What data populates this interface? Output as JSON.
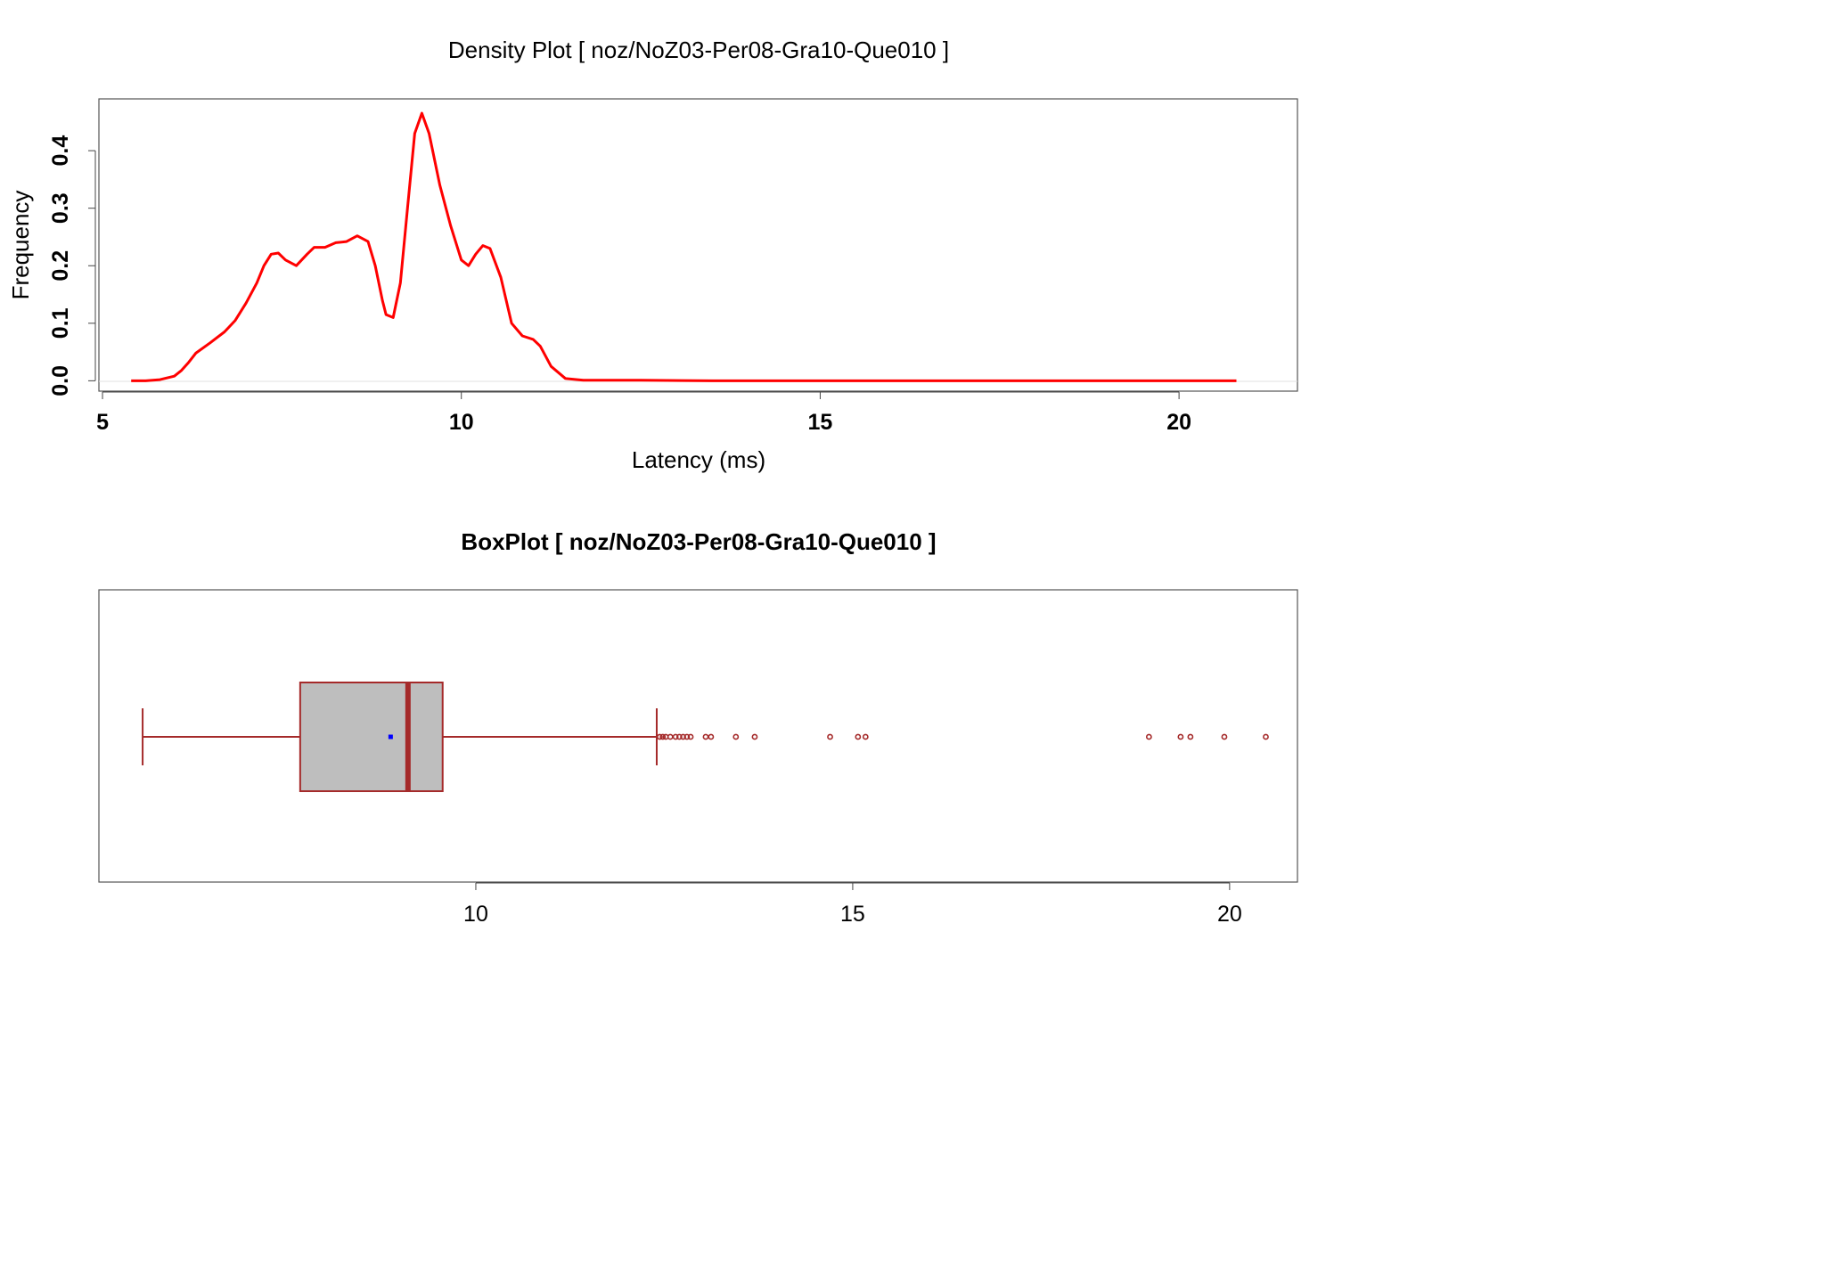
{
  "chart_data": [
    {
      "type": "line",
      "title": "Density Plot [ noz/NoZ03-Per08-Gra10-Que010 ]",
      "xlabel": "Latency (ms)",
      "ylabel": "Frequency",
      "xlim": [
        4.95,
        21.65
      ],
      "ylim": [
        -0.018,
        0.49
      ],
      "x_ticks": [
        "5",
        "10",
        "15",
        "20"
      ],
      "y_ticks": [
        "0.0",
        "0.1",
        "0.2",
        "0.3",
        "0.4"
      ],
      "line_color": "#ff0000",
      "series": [
        {
          "points": [
            [
              5.4,
              0.0
            ],
            [
              5.6,
              0.0
            ],
            [
              5.8,
              0.002
            ],
            [
              6.0,
              0.008
            ],
            [
              6.1,
              0.018
            ],
            [
              6.2,
              0.032
            ],
            [
              6.3,
              0.048
            ],
            [
              6.5,
              0.066
            ],
            [
              6.7,
              0.085
            ],
            [
              6.85,
              0.105
            ],
            [
              7.0,
              0.135
            ],
            [
              7.15,
              0.17
            ],
            [
              7.25,
              0.2
            ],
            [
              7.35,
              0.22
            ],
            [
              7.45,
              0.222
            ],
            [
              7.55,
              0.21
            ],
            [
              7.7,
              0.2
            ],
            [
              7.85,
              0.22
            ],
            [
              7.95,
              0.232
            ],
            [
              8.1,
              0.232
            ],
            [
              8.25,
              0.24
            ],
            [
              8.4,
              0.242
            ],
            [
              8.55,
              0.252
            ],
            [
              8.7,
              0.242
            ],
            [
              8.8,
              0.2
            ],
            [
              8.9,
              0.14
            ],
            [
              8.95,
              0.115
            ],
            [
              9.05,
              0.11
            ],
            [
              9.15,
              0.17
            ],
            [
              9.25,
              0.3
            ],
            [
              9.35,
              0.43
            ],
            [
              9.45,
              0.465
            ],
            [
              9.55,
              0.43
            ],
            [
              9.7,
              0.34
            ],
            [
              9.85,
              0.27
            ],
            [
              10.0,
              0.21
            ],
            [
              10.1,
              0.2
            ],
            [
              10.2,
              0.22
            ],
            [
              10.3,
              0.235
            ],
            [
              10.4,
              0.23
            ],
            [
              10.55,
              0.18
            ],
            [
              10.7,
              0.1
            ],
            [
              10.85,
              0.078
            ],
            [
              11.0,
              0.072
            ],
            [
              11.1,
              0.06
            ],
            [
              11.25,
              0.025
            ],
            [
              11.45,
              0.004
            ],
            [
              11.7,
              0.001
            ],
            [
              12.5,
              0.001
            ],
            [
              13.5,
              0.0
            ],
            [
              15.0,
              0.0
            ],
            [
              17.0,
              0.0
            ],
            [
              19.0,
              0.0
            ],
            [
              20.8,
              0.0
            ]
          ]
        }
      ]
    },
    {
      "type": "box",
      "title": "BoxPlot [ noz/NoZ03-Per08-Gra10-Que010 ]",
      "xlim": [
        5.0,
        20.9
      ],
      "x_ticks": [
        "10",
        "15",
        "20"
      ],
      "whisker_low": 5.58,
      "q1": 7.67,
      "median": 9.1,
      "q3": 9.56,
      "whisker_high": 12.4,
      "mean": 8.87,
      "box_color": "#bebebe",
      "line_color": "#a52a2a",
      "mean_color": "#0000ff",
      "outliers": [
        12.44,
        12.48,
        12.52,
        12.58,
        12.65,
        12.7,
        12.75,
        12.8,
        12.85,
        13.05,
        13.12,
        13.45,
        13.7,
        14.7,
        15.07,
        15.17,
        18.93,
        19.35,
        19.48,
        19.93,
        20.48
      ]
    }
  ]
}
